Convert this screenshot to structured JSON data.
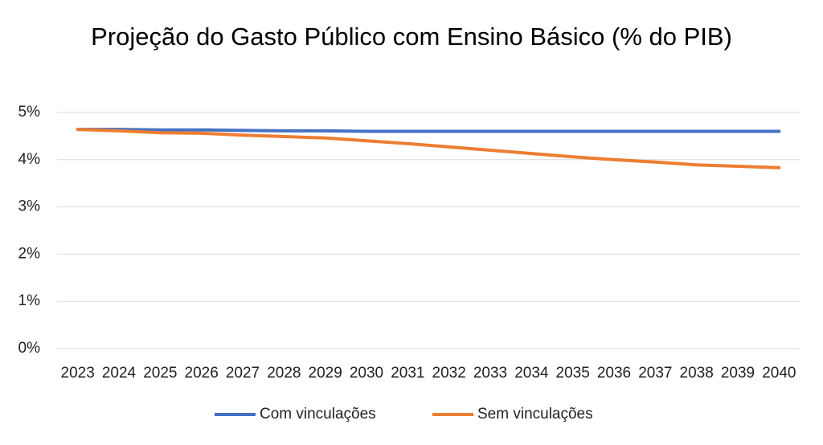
{
  "chart_data": {
    "type": "line",
    "title": "Projeção do Gasto Público com Ensino Básico (% do PIB)",
    "categories": [
      "2023",
      "2024",
      "2025",
      "2026",
      "2027",
      "2028",
      "2029",
      "2030",
      "2031",
      "2032",
      "2033",
      "2034",
      "2035",
      "2036",
      "2037",
      "2038",
      "2039",
      "2040"
    ],
    "series": [
      {
        "name": "Com vinculações",
        "color": "#4472c4",
        "values": [
          4.64,
          4.64,
          4.63,
          4.63,
          4.62,
          4.61,
          4.61,
          4.6,
          4.6,
          4.6,
          4.6,
          4.6,
          4.6,
          4.6,
          4.6,
          4.6,
          4.6,
          4.6
        ]
      },
      {
        "name": "Sem vinculações",
        "color": "#ed7d31",
        "values": [
          4.64,
          4.61,
          4.57,
          4.56,
          4.52,
          4.49,
          4.46,
          4.4,
          4.34,
          4.27,
          4.2,
          4.13,
          4.06,
          4.0,
          3.95,
          3.89,
          3.86,
          3.83
        ]
      }
    ],
    "ylim": [
      0,
      5
    ],
    "yticks": [
      {
        "value": 0,
        "label": "0%"
      },
      {
        "value": 1,
        "label": "1%"
      },
      {
        "value": 2,
        "label": "2%"
      },
      {
        "value": 3,
        "label": "3%"
      },
      {
        "value": 4,
        "label": "4%"
      },
      {
        "value": 5,
        "label": "5%"
      }
    ],
    "grid": true,
    "legend": "bottom"
  }
}
